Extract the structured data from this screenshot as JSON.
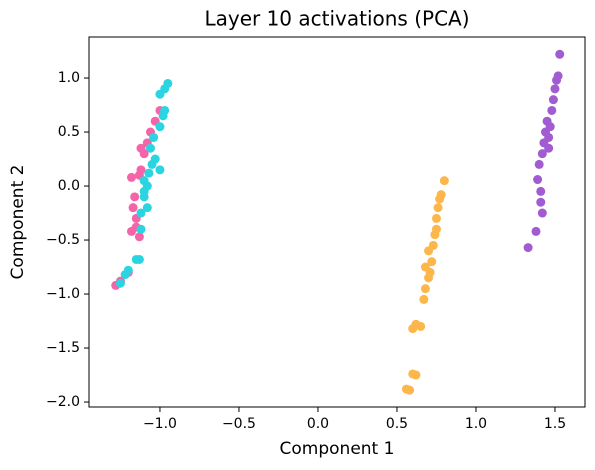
{
  "chart_data": {
    "type": "scatter",
    "title": "Layer 10 activations (PCA)",
    "x_label": "Component 1",
    "y_label": "Component 2",
    "xlim": [
      -1.449,
      1.69
    ],
    "ylim": [
      -2.046,
      1.38
    ],
    "xticks": [
      {
        "value": -1,
        "label": "−1.0"
      },
      {
        "value": -0.5,
        "label": "−0.5"
      },
      {
        "value": 0,
        "label": "0.0"
      },
      {
        "value": 0.5,
        "label": "0.5"
      },
      {
        "value": 1,
        "label": "1.0"
      },
      {
        "value": 1.5,
        "label": "1.5"
      }
    ],
    "yticks": [
      {
        "value": -2,
        "label": "−2.0"
      },
      {
        "value": -1.5,
        "label": "−1.5"
      },
      {
        "value": -1,
        "label": "−1.0"
      },
      {
        "value": -0.5,
        "label": "−0.5"
      },
      {
        "value": 0,
        "label": "0.0"
      },
      {
        "value": 0.5,
        "label": "0.5"
      },
      {
        "value": 1,
        "label": "1.0"
      }
    ],
    "grid": false,
    "series": [
      {
        "color": "#f564a8",
        "x": [
          -1.28,
          -1.25,
          -1.2,
          -1.18,
          -1.15,
          -1.13,
          -1.17,
          -1.16,
          -1.13,
          -1.12,
          -1.1,
          -1.08,
          -1.06,
          -1.03,
          -1.0,
          -1.15,
          -1.18,
          -1.12
        ],
        "values": [
          -0.92,
          -0.88,
          -0.8,
          -0.42,
          -0.38,
          -0.47,
          -0.2,
          -0.1,
          0.1,
          0.15,
          0.3,
          0.4,
          0.5,
          0.6,
          0.7,
          -0.3,
          0.08,
          0.35
        ]
      },
      {
        "color": "#2ad4e0",
        "x": [
          -1.25,
          -1.22,
          -1.2,
          -1.15,
          -1.13,
          -1.12,
          -1.12,
          -1.1,
          -1.08,
          -1.1,
          -1.07,
          -1.05,
          -1.03,
          -1.0,
          -1.06,
          -1.04,
          -1.0,
          -0.98,
          -0.97,
          -1.0,
          -0.97,
          -0.95,
          -1.08,
          -1.1
        ],
        "values": [
          -0.9,
          -0.82,
          -0.78,
          -0.68,
          -0.68,
          -0.4,
          -0.25,
          -0.1,
          0.0,
          0.05,
          0.12,
          0.2,
          0.25,
          0.15,
          0.35,
          0.45,
          0.55,
          0.65,
          0.7,
          0.85,
          0.9,
          0.95,
          -0.2,
          -0.05
        ]
      },
      {
        "color": "#fdb64a",
        "x": [
          0.56,
          0.58,
          0.6,
          0.62,
          0.6,
          0.62,
          0.65,
          0.67,
          0.68,
          0.7,
          0.68,
          0.72,
          0.7,
          0.73,
          0.74,
          0.75,
          0.75,
          0.76,
          0.77,
          0.78,
          0.8,
          0.71
        ],
        "values": [
          -1.88,
          -1.89,
          -1.74,
          -1.75,
          -1.32,
          -1.28,
          -1.3,
          -1.05,
          -0.95,
          -0.85,
          -0.75,
          -0.7,
          -0.6,
          -0.55,
          -0.45,
          -0.4,
          -0.3,
          -0.2,
          -0.12,
          -0.08,
          0.05,
          -0.8
        ]
      },
      {
        "color": "#a05cd0",
        "x": [
          1.33,
          1.38,
          1.39,
          1.41,
          1.41,
          1.42,
          1.4,
          1.42,
          1.43,
          1.44,
          1.45,
          1.46,
          1.47,
          1.48,
          1.49,
          1.5,
          1.51,
          1.53,
          1.52,
          1.46
        ],
        "values": [
          -0.57,
          -0.42,
          0.06,
          -0.05,
          -0.15,
          -0.25,
          0.2,
          0.3,
          0.4,
          0.5,
          0.6,
          0.45,
          0.55,
          0.7,
          0.8,
          0.9,
          0.98,
          1.22,
          1.02,
          0.35
        ]
      }
    ]
  }
}
